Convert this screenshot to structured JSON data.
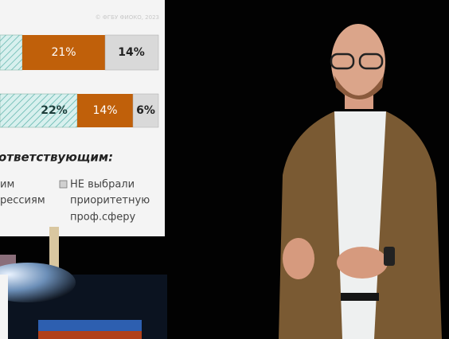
{
  "slide": {
    "watermark": "© ФГБУ ФИОКО, 2023",
    "bars": [
      {
        "labels": [
          "21%",
          "14%"
        ]
      },
      {
        "labels": [
          "22%",
          "14%",
          "6%"
        ]
      }
    ],
    "caption": "ответствующим:",
    "legend_left": [
      "им",
      "рессиям"
    ],
    "legend_right": [
      "НЕ выбрали",
      "приоритетную",
      "проф.сферу"
    ]
  }
}
